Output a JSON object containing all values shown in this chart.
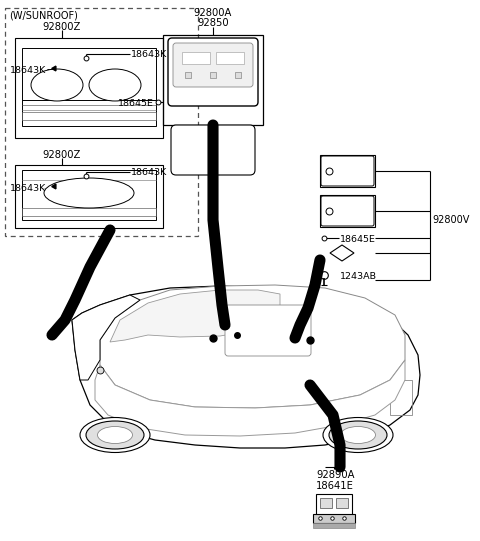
{
  "bg_color": "#ffffff",
  "fig_width": 4.8,
  "fig_height": 5.41,
  "dpi": 100,
  "labels": {
    "w_sunroof": "(W/SUNROOF)",
    "92800Z_top": "92800Z",
    "92800Z_bot": "92800Z",
    "18643K": "18643K",
    "92800A": "92800A",
    "92850": "92850",
    "18645E_top": "18645E",
    "18645E_right": "18645E",
    "92800V": "92800V",
    "1243AB": "1243AB",
    "92890A": "92890A",
    "18641E": "18641E"
  },
  "thick_lines": [
    {
      "x": [
        175,
        158,
        110,
        65,
        42
      ],
      "y": [
        243,
        263,
        287,
        307,
        327
      ]
    },
    {
      "x": [
        221,
        221,
        228,
        232,
        235
      ],
      "y": [
        243,
        270,
        285,
        292,
        295
      ]
    },
    {
      "x": [
        320,
        318,
        316,
        313,
        305,
        295
      ],
      "y": [
        243,
        262,
        278,
        293,
        308,
        320
      ]
    }
  ]
}
